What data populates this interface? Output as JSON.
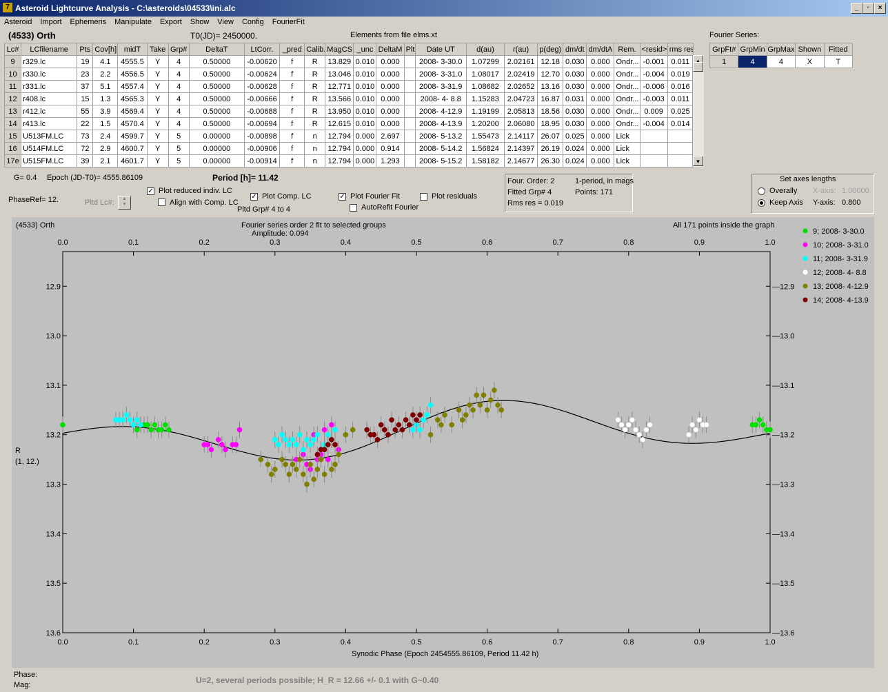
{
  "window": {
    "title": "Asteroid Lightcurve Analysis - C:\\asteroids\\04533\\ini.alc",
    "icon_name": "app-icon"
  },
  "menu": [
    "Asteroid",
    "Import",
    "Ephemeris",
    "Manipulate",
    "Export",
    "Show",
    "View",
    "Config",
    "FourierFit"
  ],
  "header": {
    "object": "(4533) Orth",
    "t0": "T0(JD)= 2450000.",
    "elements": "Elements from file elms.xt",
    "fourier_label": "Fourier Series:"
  },
  "table": {
    "columns": [
      "Lc#",
      "LCfilename",
      "Pts",
      "Cov[h]",
      "midT",
      "Take",
      "Grp#",
      "DeltaT",
      "LtCorr.",
      "_pred",
      "Calib.",
      "MagCS",
      "_unc",
      "DeltaM",
      "Plt",
      "Date UT",
      "d(au)",
      "r(au)",
      "p(deg)",
      "dm/dt",
      "dm/dtA",
      "Rem.",
      "<resid>",
      "rms res"
    ],
    "rows": [
      [
        "9",
        "r329.lc",
        "19",
        "4.1",
        "4555.5",
        "Y",
        "4",
        "0.50000",
        "-0.00620",
        "f",
        "R",
        "13.829",
        "0.010",
        "0.000",
        "",
        "2008- 3-30.0",
        "1.07299",
        "2.02161",
        "12.18",
        "0.030",
        "0.000",
        "Ondr...",
        "-0.001",
        "0.011"
      ],
      [
        "10",
        "r330.lc",
        "23",
        "2.2",
        "4556.5",
        "Y",
        "4",
        "0.50000",
        "-0.00624",
        "f",
        "R",
        "13.046",
        "0.010",
        "0.000",
        "",
        "2008- 3-31.0",
        "1.08017",
        "2.02419",
        "12.70",
        "0.030",
        "0.000",
        "Ondr...",
        "-0.004",
        "0.019"
      ],
      [
        "11",
        "r331.lc",
        "37",
        "5.1",
        "4557.4",
        "Y",
        "4",
        "0.50000",
        "-0.00628",
        "f",
        "R",
        "12.771",
        "0.010",
        "0.000",
        "",
        "2008- 3-31.9",
        "1.08682",
        "2.02652",
        "13.16",
        "0.030",
        "0.000",
        "Ondr...",
        "-0.006",
        "0.016"
      ],
      [
        "12",
        "r408.lc",
        "15",
        "1.3",
        "4565.3",
        "Y",
        "4",
        "0.50000",
        "-0.00666",
        "f",
        "R",
        "13.566",
        "0.010",
        "0.000",
        "",
        "2008- 4- 8.8",
        "1.15283",
        "2.04723",
        "16.87",
        "0.031",
        "0.000",
        "Ondr...",
        "-0.003",
        "0.011"
      ],
      [
        "13",
        "r412.lc",
        "55",
        "3.9",
        "4569.4",
        "Y",
        "4",
        "0.50000",
        "-0.00688",
        "f",
        "R",
        "13.950",
        "0.010",
        "0.000",
        "",
        "2008- 4-12.9",
        "1.19199",
        "2.05813",
        "18.56",
        "0.030",
        "0.000",
        "Ondr...",
        "0.009",
        "0.025"
      ],
      [
        "14",
        "r413.lc",
        "22",
        "1.5",
        "4570.4",
        "Y",
        "4",
        "0.50000",
        "-0.00694",
        "f",
        "R",
        "12.615",
        "0.010",
        "0.000",
        "",
        "2008- 4-13.9",
        "1.20200",
        "2.06080",
        "18.95",
        "0.030",
        "0.000",
        "Ondr...",
        "-0.004",
        "0.014"
      ],
      [
        "15",
        "U513FM.LC",
        "73",
        "2.4",
        "4599.7",
        "Y",
        "5",
        "0.00000",
        "-0.00898",
        "f",
        "n",
        "12.794",
        "0.000",
        "2.697",
        "",
        "2008- 5-13.2",
        "1.55473",
        "2.14117",
        "26.07",
        "0.025",
        "0.000",
        "Lick",
        "",
        ""
      ],
      [
        "16",
        "U514FM.LC",
        "72",
        "2.9",
        "4600.7",
        "Y",
        "5",
        "0.00000",
        "-0.00906",
        "f",
        "n",
        "12.794",
        "0.000",
        "0.914",
        "",
        "2008- 5-14.2",
        "1.56824",
        "2.14397",
        "26.19",
        "0.024",
        "0.000",
        "Lick",
        "",
        ""
      ],
      [
        "17e",
        "U515FM.LC",
        "39",
        "2.1",
        "4601.7",
        "Y",
        "5",
        "0.00000",
        "-0.00914",
        "f",
        "n",
        "12.794",
        "0.000",
        "1.293",
        "",
        "2008- 5-15.2",
        "1.58182",
        "2.14677",
        "26.30",
        "0.024",
        "0.000",
        "Lick",
        "",
        ""
      ]
    ]
  },
  "fourier_table": {
    "columns": [
      "GrpFt#",
      "GrpMin",
      "GrpMax",
      "Shown",
      "Fitted"
    ],
    "row": [
      "1",
      "4",
      "4",
      "X",
      "T"
    ]
  },
  "controls": {
    "g": "G= 0.4",
    "epoch": "Epoch (JD-T0)= 4555.86109",
    "period": "Period [h]= 11.42",
    "phaseref": "PhaseRef= 12.",
    "pltd_lc": "Pltd Lc#:",
    "plot_reduced": "Plot reduced indiv. LC",
    "align": "Align with Comp. LC",
    "plot_comp": "Plot Comp. LC",
    "pltd_grp": "Pltd Grp#  4   to    4",
    "plot_fourier": "Plot Fourier Fit",
    "autorefit": "AutoRefit Fourier",
    "plot_residuals": "Plot residuals",
    "checks": {
      "plot_reduced": true,
      "align": false,
      "plot_comp": true,
      "plot_fourier": true,
      "autorefit": false,
      "plot_residuals": false
    }
  },
  "info_box": {
    "order": "Four. Order:  2",
    "one_period": "1-period, in mags",
    "fitted": "Fitted Grp# 4",
    "points": "Points: 171",
    "rms": "Rms res     = 0.019"
  },
  "axes_box": {
    "title": "Set axes lengths",
    "overally": "Overally",
    "keep": "Keep Axis",
    "xaxis": "X-axis:",
    "xval": "1.00000",
    "yaxis": "Y-axis:",
    "yval": "0.800",
    "selected": "keep"
  },
  "plot": {
    "object": "(4533) Orth",
    "fit_title": "Fourier series order 2 fit to selected groups",
    "amplitude": "Amplitude: 0.094",
    "inside": "All 171 points inside the graph",
    "ylabel1": "R",
    "ylabel2": "(1, 12.)",
    "xlabel": "Synodic Phase (Epoch 2454555.86109, Period 11.42 h)",
    "phase_label": "Phase:",
    "mag_label": "Mag:",
    "note": "U=2, several periods possible; H_R = 12.66 +/- 0.1 with G~0.40"
  },
  "chart_data": {
    "type": "scatter",
    "xlim": [
      0.0,
      1.0
    ],
    "ylim": [
      13.6,
      12.83
    ],
    "y_inverted": true,
    "x_ticks": [
      "0.0",
      "0.1",
      "0.2",
      "0.3",
      "0.4",
      "0.5",
      "0.6",
      "0.7",
      "0.8",
      "0.9",
      "1.0"
    ],
    "y_ticks": [
      "12.9",
      "13.0",
      "13.1",
      "13.2",
      "13.3",
      "13.4",
      "13.5",
      "13.6"
    ],
    "grid": false,
    "legend_position": "right",
    "fourier_fit": {
      "mean": 13.195,
      "a1": 0.01,
      "b1": 0.03,
      "a2": -0.008,
      "b2": -0.036
    },
    "series": [
      {
        "name": "9; 2008- 3-30.0",
        "color": "#00e000",
        "x": [
          0.0,
          0.105,
          0.11,
          0.115,
          0.12,
          0.125,
          0.13,
          0.135,
          0.14,
          0.145,
          0.15,
          0.975,
          0.98,
          0.985,
          0.99,
          0.995,
          1.0
        ],
        "y": [
          13.18,
          13.19,
          13.18,
          13.18,
          13.18,
          13.19,
          13.18,
          13.19,
          13.19,
          13.18,
          13.19,
          13.18,
          13.18,
          13.17,
          13.18,
          13.19,
          13.19
        ]
      },
      {
        "name": "10; 2008- 3-31.0",
        "color": "#ff00ff",
        "x": [
          0.2,
          0.205,
          0.21,
          0.22,
          0.225,
          0.23,
          0.24,
          0.245,
          0.25,
          0.33,
          0.34,
          0.345,
          0.35,
          0.355,
          0.36,
          0.365,
          0.37,
          0.375,
          0.38,
          0.39,
          0.5
        ],
        "y": [
          13.22,
          13.22,
          13.23,
          13.21,
          13.22,
          13.23,
          13.22,
          13.22,
          13.19,
          13.25,
          13.24,
          13.26,
          13.27,
          13.2,
          13.25,
          13.24,
          13.19,
          13.25,
          13.18,
          13.23,
          13.18
        ]
      },
      {
        "name": "11; 2008- 3-31.9",
        "color": "#00ffff",
        "x": [
          0.075,
          0.08,
          0.085,
          0.09,
          0.095,
          0.1,
          0.105,
          0.11,
          0.3,
          0.305,
          0.31,
          0.315,
          0.32,
          0.325,
          0.33,
          0.335,
          0.34,
          0.345,
          0.35,
          0.355,
          0.36,
          0.365,
          0.37,
          0.375,
          0.38,
          0.385,
          0.49,
          0.495,
          0.5,
          0.505,
          0.51,
          0.515,
          0.52
        ],
        "y": [
          13.17,
          13.17,
          13.17,
          13.16,
          13.17,
          13.18,
          13.17,
          13.18,
          13.21,
          13.22,
          13.2,
          13.21,
          13.22,
          13.21,
          13.22,
          13.2,
          13.23,
          13.21,
          13.22,
          13.21,
          13.2,
          13.23,
          13.22,
          13.2,
          13.21,
          13.19,
          13.18,
          13.19,
          13.18,
          13.19,
          13.17,
          13.16,
          13.14
        ]
      },
      {
        "name": "12; 2008- 4- 8.8",
        "color": "#ffffff",
        "x": [
          0.785,
          0.79,
          0.795,
          0.8,
          0.805,
          0.81,
          0.815,
          0.82,
          0.825,
          0.83,
          0.885,
          0.89,
          0.895,
          0.9,
          0.905,
          0.91
        ],
        "y": [
          13.17,
          13.18,
          13.19,
          13.18,
          13.17,
          13.19,
          13.2,
          13.21,
          13.19,
          13.18,
          13.2,
          13.18,
          13.19,
          13.17,
          13.18,
          13.18
        ]
      },
      {
        "name": "13; 2008- 4-12.9",
        "color": "#808000",
        "x": [
          0.28,
          0.29,
          0.295,
          0.3,
          0.31,
          0.315,
          0.32,
          0.325,
          0.33,
          0.335,
          0.34,
          0.345,
          0.35,
          0.355,
          0.36,
          0.365,
          0.37,
          0.38,
          0.385,
          0.39,
          0.4,
          0.41,
          0.52,
          0.53,
          0.535,
          0.54,
          0.55,
          0.56,
          0.565,
          0.57,
          0.575,
          0.58,
          0.585,
          0.59,
          0.595,
          0.6,
          0.605,
          0.61,
          0.615,
          0.62
        ],
        "y": [
          13.25,
          13.26,
          13.28,
          13.27,
          13.25,
          13.26,
          13.28,
          13.26,
          13.27,
          13.25,
          13.28,
          13.3,
          13.26,
          13.29,
          13.27,
          13.25,
          13.28,
          13.27,
          13.26,
          13.24,
          13.2,
          13.19,
          13.2,
          13.17,
          13.18,
          13.16,
          13.18,
          13.15,
          13.17,
          13.16,
          13.14,
          13.15,
          13.12,
          13.14,
          13.12,
          13.15,
          13.13,
          13.11,
          13.14,
          13.15
        ]
      },
      {
        "name": "14; 2008- 4-13.9",
        "color": "#800000",
        "x": [
          0.36,
          0.365,
          0.37,
          0.375,
          0.38,
          0.385,
          0.43,
          0.435,
          0.44,
          0.445,
          0.45,
          0.455,
          0.46,
          0.465,
          0.47,
          0.475,
          0.48,
          0.485,
          0.49,
          0.495,
          0.5,
          0.505
        ],
        "y": [
          13.24,
          13.23,
          13.23,
          13.22,
          13.21,
          13.22,
          13.19,
          13.2,
          13.2,
          13.21,
          13.18,
          13.19,
          13.2,
          13.17,
          13.19,
          13.18,
          13.19,
          13.17,
          13.18,
          13.16,
          13.17,
          13.16
        ]
      }
    ]
  }
}
